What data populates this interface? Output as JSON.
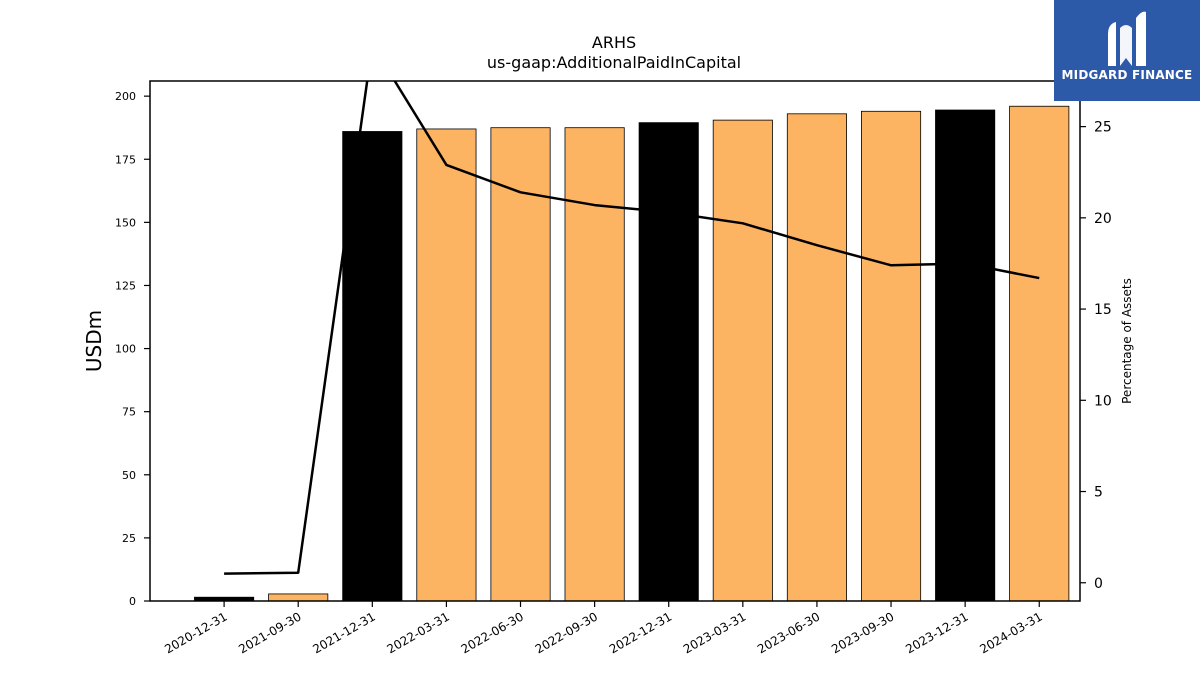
{
  "chart_data": {
    "type": "bar",
    "title": "ARHS",
    "subtitle": "us-gaap:AdditionalPaidInCapital",
    "ylabel": "USDm",
    "y2label": "Percentage of Assets",
    "categories": [
      "2020-12-31",
      "2021-09-30",
      "2021-12-31",
      "2022-03-31",
      "2022-06-30",
      "2022-09-30",
      "2022-12-31",
      "2023-03-31",
      "2023-06-30",
      "2023-09-30",
      "2023-12-31",
      "2024-03-31"
    ],
    "values": [
      1.5,
      2.8,
      186.0,
      187.0,
      187.5,
      187.5,
      189.5,
      190.5,
      193.0,
      194.0,
      194.5,
      196.0
    ],
    "bar_colors": [
      "#000000",
      "#fdb462",
      "#000000",
      "#fdb462",
      "#fdb462",
      "#fdb462",
      "#000000",
      "#fdb462",
      "#fdb462",
      "#fdb462",
      "#000000",
      "#fdb462"
    ],
    "line_series": {
      "name": "Percentage of Assets",
      "values": [
        0.5,
        0.55,
        29.5,
        22.9,
        21.4,
        20.7,
        20.3,
        19.7,
        18.5,
        17.4,
        17.5,
        16.7
      ],
      "color": "#000000"
    },
    "ylim": [
      0,
      206
    ],
    "y2lim": [
      -1,
      27.5
    ],
    "yticks": [
      0,
      25,
      50,
      75,
      100,
      125,
      150,
      175,
      200
    ],
    "y2ticks": [
      0,
      5,
      10,
      15,
      20,
      25
    ],
    "grid": false,
    "legend": "none"
  },
  "logo": {
    "text": "MIDGARD FINANCE",
    "background": "#2c5aa8"
  }
}
